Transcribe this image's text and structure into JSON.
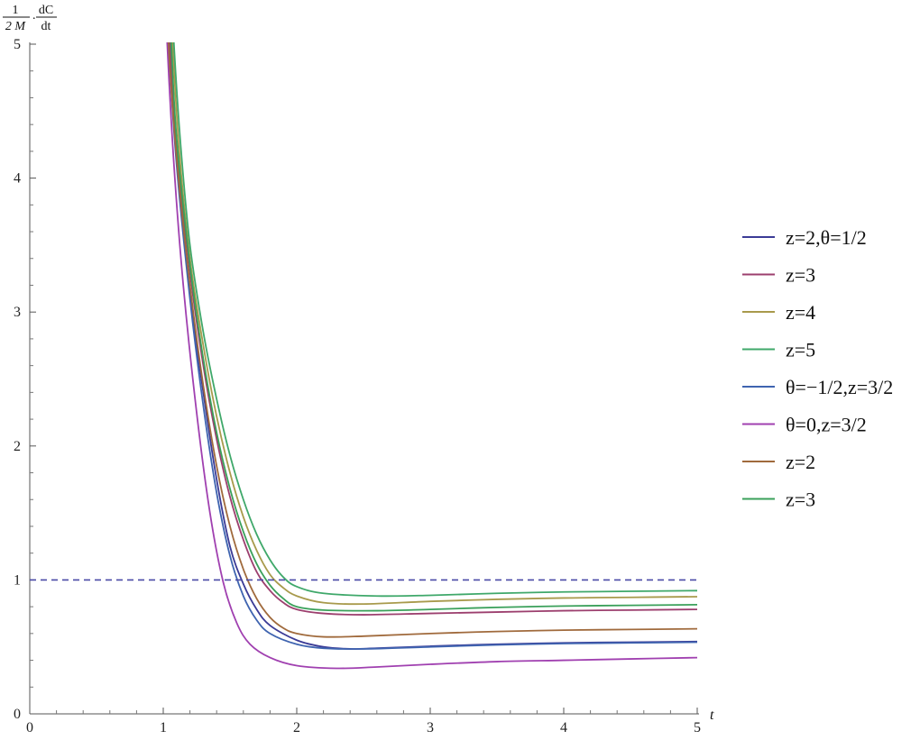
{
  "chart_data": {
    "type": "line",
    "title": "",
    "ylabel": {
      "frac1_num": "1",
      "frac1_den": "2 M",
      "dot": ".",
      "frac2_num": "dC",
      "frac2_den": "dt"
    },
    "xlabel": "t",
    "xlim": [
      0,
      5
    ],
    "ylim": [
      0,
      5
    ],
    "x_ticks": [
      "0",
      "1",
      "2",
      "3",
      "4",
      "5"
    ],
    "y_ticks": [
      "0",
      "1",
      "2",
      "3",
      "4",
      "5"
    ],
    "grid": false,
    "legend_position": "right",
    "reference_line": {
      "y": 1,
      "style": "dashed",
      "color": "#4a4aa6"
    },
    "series": [
      {
        "name": "z=2,θ=1/2",
        "color": "#3b3b96",
        "points": [
          [
            1.0,
            6.0
          ],
          [
            1.05,
            5.0
          ],
          [
            1.1,
            4.2
          ],
          [
            1.2,
            3.15
          ],
          [
            1.3,
            2.4
          ],
          [
            1.4,
            1.75
          ],
          [
            1.5,
            1.25
          ],
          [
            1.6,
            0.97
          ],
          [
            1.7,
            0.78
          ],
          [
            1.8,
            0.66
          ],
          [
            2.0,
            0.55
          ],
          [
            2.2,
            0.5
          ],
          [
            2.4,
            0.485
          ],
          [
            2.6,
            0.49
          ],
          [
            3.0,
            0.505
          ],
          [
            3.5,
            0.52
          ],
          [
            4.0,
            0.53
          ],
          [
            4.5,
            0.535
          ],
          [
            5.0,
            0.54
          ]
        ]
      },
      {
        "name": "z=3",
        "color": "#9c3f6e",
        "points": [
          [
            1.0,
            6.0
          ],
          [
            1.05,
            5.0
          ],
          [
            1.1,
            4.25
          ],
          [
            1.2,
            3.3
          ],
          [
            1.3,
            2.6
          ],
          [
            1.4,
            2.05
          ],
          [
            1.5,
            1.62
          ],
          [
            1.6,
            1.3
          ],
          [
            1.7,
            1.06
          ],
          [
            1.8,
            0.92
          ],
          [
            1.9,
            0.83
          ],
          [
            2.0,
            0.78
          ],
          [
            2.2,
            0.75
          ],
          [
            2.5,
            0.74
          ],
          [
            3.0,
            0.75
          ],
          [
            3.5,
            0.76
          ],
          [
            4.0,
            0.77
          ],
          [
            4.5,
            0.775
          ],
          [
            5.0,
            0.78
          ]
        ]
      },
      {
        "name": "z=4",
        "color": "#a89a4c",
        "points": [
          [
            1.02,
            6.0
          ],
          [
            1.07,
            5.0
          ],
          [
            1.12,
            4.2
          ],
          [
            1.2,
            3.4
          ],
          [
            1.3,
            2.75
          ],
          [
            1.4,
            2.22
          ],
          [
            1.5,
            1.8
          ],
          [
            1.6,
            1.47
          ],
          [
            1.7,
            1.22
          ],
          [
            1.8,
            1.04
          ],
          [
            1.9,
            0.94
          ],
          [
            2.0,
            0.88
          ],
          [
            2.2,
            0.83
          ],
          [
            2.5,
            0.82
          ],
          [
            3.0,
            0.84
          ],
          [
            3.5,
            0.855
          ],
          [
            4.0,
            0.865
          ],
          [
            4.5,
            0.87
          ],
          [
            5.0,
            0.875
          ]
        ]
      },
      {
        "name": "z=5",
        "color": "#3fa86a",
        "points": [
          [
            1.03,
            6.0
          ],
          [
            1.08,
            5.0
          ],
          [
            1.13,
            4.25
          ],
          [
            1.2,
            3.5
          ],
          [
            1.3,
            2.85
          ],
          [
            1.4,
            2.35
          ],
          [
            1.5,
            1.93
          ],
          [
            1.6,
            1.6
          ],
          [
            1.7,
            1.34
          ],
          [
            1.8,
            1.15
          ],
          [
            1.9,
            1.02
          ],
          [
            2.0,
            0.95
          ],
          [
            2.2,
            0.9
          ],
          [
            2.6,
            0.88
          ],
          [
            3.0,
            0.885
          ],
          [
            3.5,
            0.9
          ],
          [
            4.0,
            0.91
          ],
          [
            4.5,
            0.915
          ],
          [
            5.0,
            0.92
          ]
        ]
      },
      {
        "name": "θ=−1/2,z=3/2",
        "color": "#3f64b0",
        "points": [
          [
            1.0,
            6.0
          ],
          [
            1.04,
            5.0
          ],
          [
            1.1,
            4.1
          ],
          [
            1.2,
            3.1
          ],
          [
            1.3,
            2.3
          ],
          [
            1.4,
            1.65
          ],
          [
            1.5,
            1.18
          ],
          [
            1.6,
            0.88
          ],
          [
            1.7,
            0.7
          ],
          [
            1.8,
            0.6
          ],
          [
            2.0,
            0.52
          ],
          [
            2.2,
            0.49
          ],
          [
            2.5,
            0.485
          ],
          [
            3.0,
            0.5
          ],
          [
            3.5,
            0.515
          ],
          [
            4.0,
            0.525
          ],
          [
            4.5,
            0.53
          ],
          [
            5.0,
            0.535
          ]
        ]
      },
      {
        "name": "θ=0,z=3/2",
        "color": "#a040b0",
        "points": [
          [
            0.99,
            6.0
          ],
          [
            1.03,
            5.0
          ],
          [
            1.08,
            4.1
          ],
          [
            1.15,
            3.2
          ],
          [
            1.25,
            2.25
          ],
          [
            1.35,
            1.5
          ],
          [
            1.45,
            0.98
          ],
          [
            1.55,
            0.68
          ],
          [
            1.65,
            0.52
          ],
          [
            1.8,
            0.42
          ],
          [
            2.0,
            0.36
          ],
          [
            2.3,
            0.34
          ],
          [
            2.6,
            0.35
          ],
          [
            3.0,
            0.37
          ],
          [
            3.5,
            0.39
          ],
          [
            4.0,
            0.4
          ],
          [
            4.5,
            0.41
          ],
          [
            5.0,
            0.42
          ]
        ]
      },
      {
        "name": "z=2",
        "color": "#a06a3c",
        "points": [
          [
            1.0,
            6.0
          ],
          [
            1.04,
            5.0
          ],
          [
            1.1,
            4.15
          ],
          [
            1.2,
            3.2
          ],
          [
            1.3,
            2.45
          ],
          [
            1.4,
            1.85
          ],
          [
            1.5,
            1.4
          ],
          [
            1.6,
            1.08
          ],
          [
            1.7,
            0.86
          ],
          [
            1.8,
            0.72
          ],
          [
            1.9,
            0.64
          ],
          [
            2.0,
            0.6
          ],
          [
            2.2,
            0.575
          ],
          [
            2.5,
            0.58
          ],
          [
            3.0,
            0.6
          ],
          [
            3.5,
            0.615
          ],
          [
            4.0,
            0.625
          ],
          [
            4.5,
            0.63
          ],
          [
            5.0,
            0.635
          ]
        ]
      },
      {
        "name": "z=3",
        "color": "#3aa05a",
        "points": [
          [
            1.01,
            6.0
          ],
          [
            1.06,
            5.0
          ],
          [
            1.1,
            4.3
          ],
          [
            1.2,
            3.35
          ],
          [
            1.3,
            2.65
          ],
          [
            1.4,
            2.1
          ],
          [
            1.5,
            1.68
          ],
          [
            1.6,
            1.36
          ],
          [
            1.7,
            1.12
          ],
          [
            1.8,
            0.96
          ],
          [
            1.9,
            0.86
          ],
          [
            2.0,
            0.8
          ],
          [
            2.2,
            0.775
          ],
          [
            2.6,
            0.77
          ],
          [
            3.0,
            0.78
          ],
          [
            3.5,
            0.795
          ],
          [
            4.0,
            0.805
          ],
          [
            4.5,
            0.81
          ],
          [
            5.0,
            0.815
          ]
        ]
      }
    ]
  }
}
